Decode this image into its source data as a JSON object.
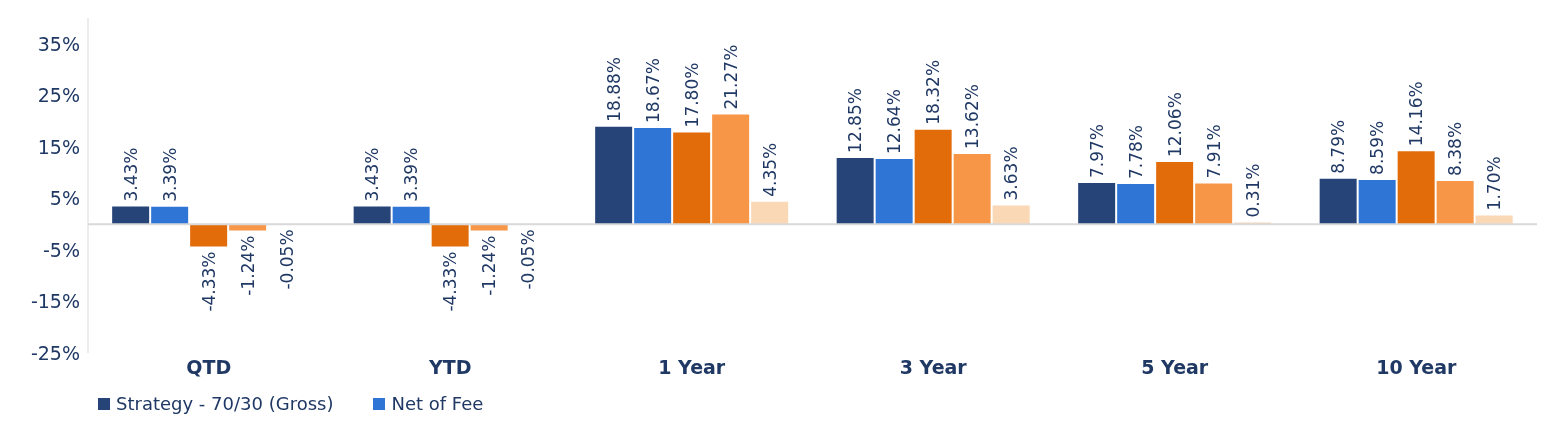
{
  "chart_data": {
    "type": "bar",
    "categories": [
      "QTD",
      "YTD",
      "1 Year",
      "3 Year",
      "5 Year",
      "10 Year"
    ],
    "series": [
      {
        "name": "Strategy - 70/30 (Gross)",
        "color": "#264478",
        "values": [
          3.43,
          3.43,
          18.88,
          12.85,
          7.97,
          8.79
        ],
        "value_labels": [
          "3.43%",
          "3.43%",
          "18.88%",
          "12.85%",
          "7.97%",
          "8.79%"
        ]
      },
      {
        "name": "Net of Fee",
        "color": "#2e75d6",
        "values": [
          3.39,
          3.39,
          18.67,
          12.64,
          7.78,
          8.59
        ],
        "value_labels": [
          "3.39%",
          "3.39%",
          "18.67%",
          "12.64%",
          "7.78%",
          "8.59%"
        ]
      },
      {
        "color": "#e36c0a",
        "values": [
          -4.33,
          -4.33,
          17.8,
          18.32,
          12.06,
          14.16
        ],
        "value_labels": [
          "-4.33%",
          "-4.33%",
          "17.80%",
          "18.32%",
          "12.06%",
          "14.16%"
        ]
      },
      {
        "color": "#f79646",
        "values": [
          -1.24,
          -1.24,
          21.27,
          13.62,
          7.91,
          8.38
        ],
        "value_labels": [
          "-1.24%",
          "-1.24%",
          "21.27%",
          "13.62%",
          "7.91%",
          "8.38%"
        ]
      },
      {
        "color": "#fad7b5",
        "values": [
          -0.05,
          -0.05,
          4.35,
          3.63,
          0.31,
          1.7
        ],
        "value_labels": [
          "-0.05%",
          "-0.05%",
          "4.35%",
          "3.63%",
          "0.31%",
          "1.70%"
        ]
      }
    ],
    "ylim": [
      -25,
      40
    ],
    "yticks": [
      {
        "value": -25,
        "label": "-25%"
      },
      {
        "value": -15,
        "label": "-15%"
      },
      {
        "value": -5,
        "label": "-5%"
      },
      {
        "value": 5,
        "label": "5%"
      },
      {
        "value": 15,
        "label": "15%"
      },
      {
        "value": 25,
        "label": "25%"
      },
      {
        "value": 35,
        "label": "35%"
      }
    ],
    "grid": false,
    "legend": "bottom"
  }
}
